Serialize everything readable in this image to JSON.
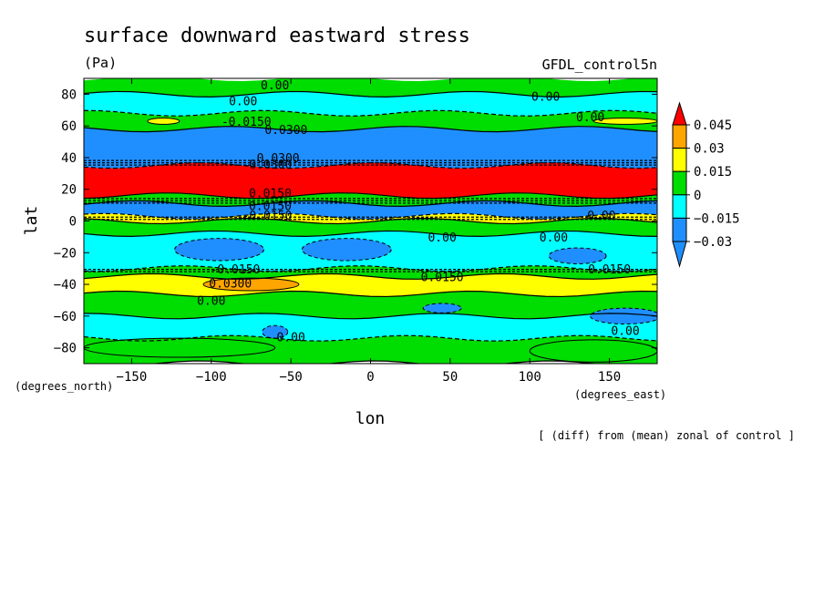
{
  "chart_data": {
    "type": "heatmap",
    "title": "surface downward eastward stress",
    "units": "(Pa)",
    "dataset": "GFDL_control5n",
    "xlabel": "lon",
    "ylabel": "lat",
    "x_units": "(degrees_east)",
    "y_units": "(degrees_north)",
    "note": "[ (diff) from (mean) zonal of control ]",
    "xlim": [
      -180,
      180
    ],
    "ylim": [
      -90,
      90
    ],
    "x_ticks": [
      -150,
      -100,
      -50,
      0,
      50,
      100,
      150
    ],
    "y_ticks": [
      80,
      60,
      40,
      20,
      0,
      -20,
      -40,
      -60,
      -80
    ],
    "colorbar": {
      "levels": [
        -0.03,
        -0.015,
        0,
        0.015,
        0.03,
        0.045
      ],
      "labels": [
        "0.045",
        "0.03",
        "0.015",
        "0",
        "-0.015",
        "-0.03"
      ],
      "colors": [
        "#1f8fff",
        "#00ffff",
        "#00dd00",
        "#ffff00",
        "#ffa500",
        "#ff0000"
      ],
      "extend": "both"
    },
    "bands": [
      {
        "lat_from": 90,
        "lat_to": 80,
        "level": 0
      },
      {
        "lat_from": 80,
        "lat_to": 68,
        "level": -0.015
      },
      {
        "lat_from": 68,
        "lat_to": 58,
        "level": 0
      },
      {
        "lat_from": 58,
        "lat_to": 35,
        "level": -0.03
      },
      {
        "lat_from": 35,
        "lat_to": 16,
        "level": 0.045
      },
      {
        "lat_from": 16,
        "lat_to": 11,
        "level": 0
      },
      {
        "lat_from": 11,
        "lat_to": 3,
        "level": -0.03
      },
      {
        "lat_from": 3,
        "lat_to": 0,
        "level": 0.015
      },
      {
        "lat_from": 0,
        "lat_to": -8,
        "level": 0
      },
      {
        "lat_from": -8,
        "lat_to": -30,
        "level": -0.015
      },
      {
        "lat_from": -30,
        "lat_to": -35,
        "level": 0
      },
      {
        "lat_from": -35,
        "lat_to": -46,
        "level": 0.015
      },
      {
        "lat_from": -46,
        "lat_to": -60,
        "level": 0
      },
      {
        "lat_from": -60,
        "lat_to": -74,
        "level": -0.015
      },
      {
        "lat_from": -74,
        "lat_to": -90,
        "level": 0
      }
    ],
    "patches": [
      {
        "lon": -95,
        "lat": -18,
        "rlon": 28,
        "rlat": 7,
        "level": -0.03
      },
      {
        "lon": -15,
        "lat": -18,
        "rlon": 28,
        "rlat": 7,
        "level": -0.03
      },
      {
        "lon": 130,
        "lat": -22,
        "rlon": 18,
        "rlat": 5,
        "level": -0.03
      },
      {
        "lon": -75,
        "lat": -40,
        "rlon": 30,
        "rlat": 4,
        "level": 0.03
      },
      {
        "lon": -60,
        "lat": -70,
        "rlon": 8,
        "rlat": 4,
        "level": -0.03
      },
      {
        "lon": 45,
        "lat": -55,
        "rlon": 12,
        "rlat": 3,
        "level": -0.03
      },
      {
        "lon": 160,
        "lat": -60,
        "rlon": 22,
        "rlat": 5,
        "level": -0.03
      },
      {
        "lon": -130,
        "lat": 63,
        "rlon": 10,
        "rlat": 2,
        "level": 0.015
      },
      {
        "lon": 160,
        "lat": 63,
        "rlon": 20,
        "rlat": 2,
        "level": 0.015
      },
      {
        "lon": 140,
        "lat": -82,
        "rlon": 40,
        "rlat": 7,
        "level": 0
      },
      {
        "lon": -120,
        "lat": -80,
        "rlon": 60,
        "rlat": 6,
        "level": 0
      }
    ],
    "contour_labels": [
      {
        "text": "0.00",
        "lon": -60,
        "lat": 83
      },
      {
        "text": "0.00",
        "lon": -80,
        "lat": 73
      },
      {
        "text": "0.00",
        "lon": 110,
        "lat": 76
      },
      {
        "text": "0.00",
        "lon": 138,
        "lat": 63
      },
      {
        "text": "0.0300",
        "lon": -53,
        "lat": 55
      },
      {
        "text": "-0.0150",
        "lon": -78,
        "lat": 60
      },
      {
        "text": "0.0300",
        "lon": -58,
        "lat": 37
      },
      {
        "text": "-0.0300",
        "lon": -65,
        "lat": 33
      },
      {
        "text": "0.0150",
        "lon": -63,
        "lat": 15
      },
      {
        "text": "0.0150",
        "lon": -63,
        "lat": 7
      },
      {
        "text": "-0.0150",
        "lon": -65,
        "lat": 1
      },
      {
        "text": "0.00",
        "lon": 145,
        "lat": 1
      },
      {
        "text": "0.00",
        "lon": 45,
        "lat": -13
      },
      {
        "text": "0.00",
        "lon": 115,
        "lat": -13
      },
      {
        "text": "0.0150",
        "lon": 150,
        "lat": -33
      },
      {
        "text": "0.0150",
        "lon": 45,
        "lat": -38
      },
      {
        "text": "-0.0150",
        "lon": -85,
        "lat": -33
      },
      {
        "text": "0.0300",
        "lon": -88,
        "lat": -42
      },
      {
        "text": "0.00",
        "lon": -100,
        "lat": -53
      },
      {
        "text": "0.00",
        "lon": -50,
        "lat": -76
      },
      {
        "text": "0.00",
        "lon": 160,
        "lat": -72
      }
    ]
  }
}
